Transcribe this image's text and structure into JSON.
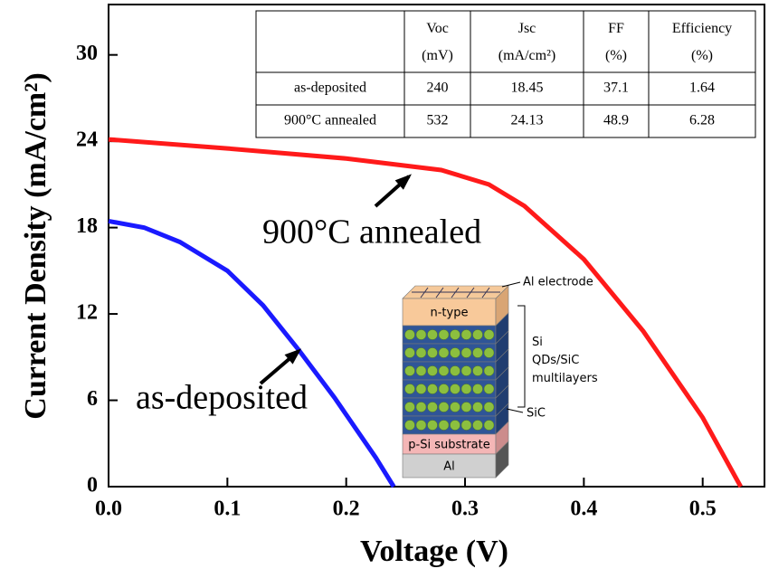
{
  "chart_data": {
    "type": "line",
    "xlabel": "Voltage (V)",
    "ylabel": "Current Density (mA/cm²)",
    "xlim": [
      0,
      0.552
    ],
    "ylim": [
      0,
      33.5
    ],
    "xticks": [
      {
        "value": 0,
        "label": "0.0"
      },
      0.1,
      0.2,
      0.3,
      0.4,
      0.5
    ],
    "yticks": [
      0,
      6,
      12,
      18,
      24,
      30
    ],
    "series": [
      {
        "name": "as-deposited",
        "color": "#1a1aff",
        "x": [
          0,
          0.03,
          0.06,
          0.1,
          0.13,
          0.16,
          0.19,
          0.21,
          0.225,
          0.24
        ],
        "values": [
          18.45,
          18.0,
          17.0,
          15.0,
          12.6,
          9.5,
          6.2,
          3.8,
          2.0,
          0
        ]
      },
      {
        "name": "900°C annealed",
        "color": "#ff1a1a",
        "x": [
          0,
          0.1,
          0.2,
          0.28,
          0.32,
          0.35,
          0.4,
          0.45,
          0.5,
          0.532
        ],
        "values": [
          24.13,
          23.5,
          22.8,
          22.0,
          21.0,
          19.5,
          15.8,
          10.8,
          4.8,
          0
        ]
      }
    ],
    "table": {
      "header": [
        "",
        "Voc (mV)",
        "Jsc (mA/cm²)",
        "FF (%)",
        "Efficiency (%)"
      ],
      "rows": [
        [
          "as-deposited",
          "240",
          "18.45",
          "37.1",
          "1.64"
        ],
        [
          "900°C annealed",
          "532",
          "24.13",
          "48.9",
          "6.28"
        ]
      ]
    },
    "inset": {
      "al_electrode": "Al electrode",
      "n_type": "n-type",
      "multilayers": "Si QDs/SiC multilayers",
      "sic": "SiC",
      "substrate": "p-Si substrate",
      "al": "Al"
    }
  }
}
